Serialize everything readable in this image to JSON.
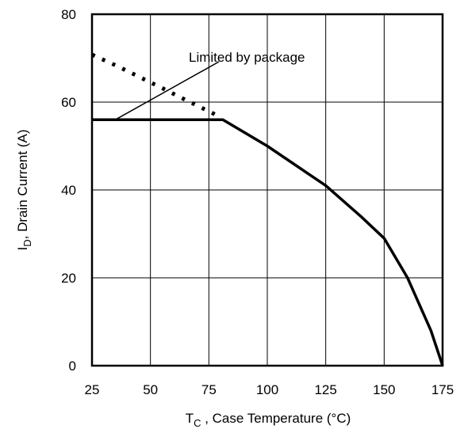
{
  "chart_data": {
    "type": "line",
    "title": "",
    "xlabel_main": "T",
    "xlabel_sub": "C",
    "xlabel_rest": " , Case Temperature (°C)",
    "ylabel_main": "I",
    "ylabel_sub": "D",
    "ylabel_rest": ",  Drain Current (A)",
    "xlim": [
      25,
      175
    ],
    "ylim": [
      0,
      80
    ],
    "x_ticks": [
      25,
      50,
      75,
      100,
      125,
      150,
      175
    ],
    "y_ticks": [
      0,
      20,
      40,
      60,
      80
    ],
    "grid": true,
    "series": [
      {
        "style": "solid",
        "x": [
          25,
          81,
          100,
          125,
          140,
          150,
          160,
          170,
          175
        ],
        "y": [
          56,
          56,
          50,
          41,
          34,
          29,
          20,
          8,
          0
        ]
      },
      {
        "style": "dotted",
        "x": [
          25,
          35,
          45,
          55,
          65,
          75,
          80
        ],
        "y": [
          70.8,
          68.4,
          65.8,
          63.2,
          60.5,
          57.9,
          56.6
        ]
      }
    ],
    "annotations": [
      {
        "text": "Limited by package",
        "x": 55,
        "y": 67,
        "arrow_to": [
          35,
          56
        ]
      }
    ]
  }
}
